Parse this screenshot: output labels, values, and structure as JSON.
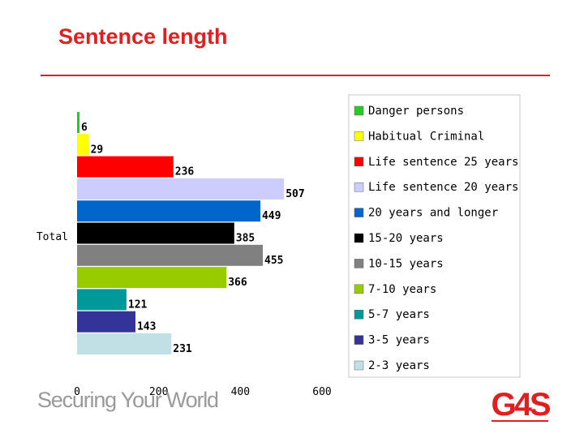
{
  "slide": {
    "title": "Sentence length",
    "tagline": "Securing Your World",
    "logo_text": "G4S",
    "accent_color": "#e02020"
  },
  "chart_data": {
    "type": "bar",
    "orientation": "horizontal",
    "title": "Sentence length",
    "categories": [
      "Total"
    ],
    "xlim": [
      0,
      600
    ],
    "x_ticks": [
      "0",
      "200",
      "400",
      "600"
    ],
    "grid": false,
    "legend_position": "right",
    "series": [
      {
        "name": "Danger persons",
        "values": [
          6
        ],
        "color": "#22cc22"
      },
      {
        "name": "Habitual Criminal",
        "values": [
          29
        ],
        "color": "#ffff00"
      },
      {
        "name": "Life sentence 25 years",
        "values": [
          236
        ],
        "color": "#ff0000"
      },
      {
        "name": "Life sentence 20 years",
        "values": [
          507
        ],
        "color": "#ccccff"
      },
      {
        "name": "20 years and longer",
        "values": [
          449
        ],
        "color": "#0066cc"
      },
      {
        "name": "15-20 years",
        "values": [
          385
        ],
        "color": "#000000"
      },
      {
        "name": "10-15 years",
        "values": [
          455
        ],
        "color": "#808080"
      },
      {
        "name": "7-10 years",
        "values": [
          366
        ],
        "color": "#99cc00"
      },
      {
        "name": "5-7 years",
        "values": [
          121
        ],
        "color": "#009999"
      },
      {
        "name": "3-5 years",
        "values": [
          143
        ],
        "color": "#333399"
      },
      {
        "name": "2-3 years",
        "values": [
          231
        ],
        "color": "#c0e0e6"
      }
    ]
  }
}
